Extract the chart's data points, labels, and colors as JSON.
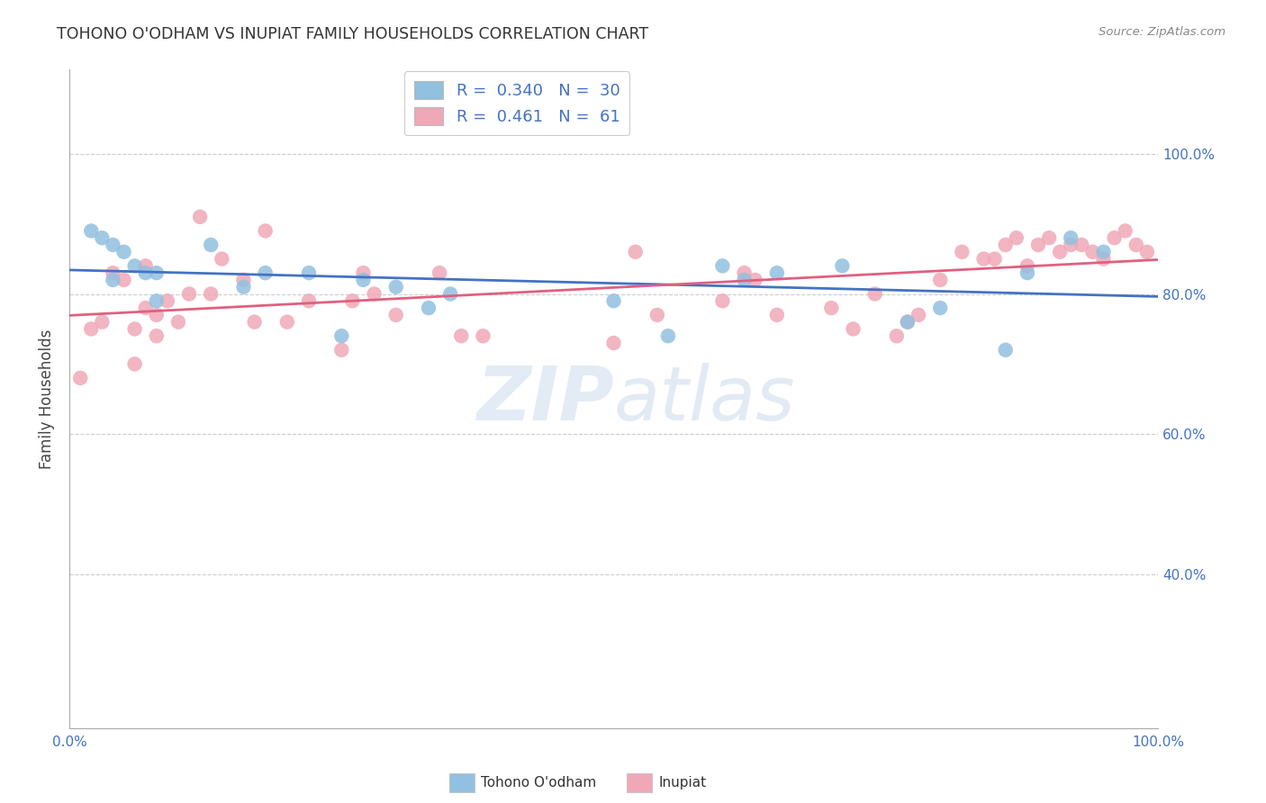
{
  "title": "TOHONO O'ODHAM VS INUPIAT FAMILY HOUSEHOLDS CORRELATION CHART",
  "source": "Source: ZipAtlas.com",
  "ylabel": "Family Households",
  "legend_label1": "Tohono O'odham",
  "legend_label2": "Inupiat",
  "legend_R1": "R =  0.340",
  "legend_N1": "N =  30",
  "legend_R2": "R =  0.461",
  "legend_N2": "N =  61",
  "color_blue": "#92C0E0",
  "color_pink": "#F0A8B8",
  "line_blue": "#4472C4",
  "line_pink": "#E06080",
  "color_R_N": "#4472C4",
  "ytick_labels": [
    "40.0%",
    "60.0%",
    "80.0%",
    "100.0%"
  ],
  "ytick_values": [
    0.4,
    0.6,
    0.8,
    1.0
  ],
  "xlim": [
    0.0,
    1.0
  ],
  "ylim": [
    0.18,
    1.12
  ],
  "grid_color": "#CCCCCC",
  "background_color": "#FFFFFF",
  "blue_x": [
    0.02,
    0.03,
    0.04,
    0.05,
    0.06,
    0.07,
    0.08,
    0.13,
    0.18,
    0.22,
    0.27,
    0.3,
    0.35,
    0.5,
    0.6,
    0.65,
    0.71,
    0.77,
    0.8,
    0.88,
    0.92,
    0.95,
    0.04,
    0.08,
    0.16,
    0.25,
    0.33,
    0.55,
    0.62,
    0.86
  ],
  "blue_y": [
    0.89,
    0.88,
    0.87,
    0.86,
    0.84,
    0.83,
    0.83,
    0.87,
    0.83,
    0.83,
    0.82,
    0.81,
    0.8,
    0.79,
    0.84,
    0.83,
    0.84,
    0.76,
    0.78,
    0.83,
    0.88,
    0.86,
    0.82,
    0.79,
    0.81,
    0.74,
    0.78,
    0.74,
    0.82,
    0.72
  ],
  "pink_x": [
    0.01,
    0.02,
    0.03,
    0.04,
    0.05,
    0.06,
    0.07,
    0.07,
    0.08,
    0.09,
    0.1,
    0.11,
    0.12,
    0.14,
    0.16,
    0.18,
    0.2,
    0.22,
    0.25,
    0.27,
    0.28,
    0.3,
    0.34,
    0.36,
    0.5,
    0.52,
    0.54,
    0.6,
    0.62,
    0.65,
    0.7,
    0.72,
    0.74,
    0.77,
    0.78,
    0.8,
    0.82,
    0.84,
    0.85,
    0.86,
    0.87,
    0.88,
    0.89,
    0.9,
    0.91,
    0.92,
    0.93,
    0.94,
    0.95,
    0.96,
    0.97,
    0.98,
    0.99,
    0.06,
    0.08,
    0.13,
    0.17,
    0.26,
    0.38,
    0.63,
    0.76
  ],
  "pink_y": [
    0.68,
    0.75,
    0.76,
    0.83,
    0.82,
    0.75,
    0.78,
    0.84,
    0.77,
    0.79,
    0.76,
    0.8,
    0.91,
    0.85,
    0.82,
    0.89,
    0.76,
    0.79,
    0.72,
    0.83,
    0.8,
    0.77,
    0.83,
    0.74,
    0.73,
    0.86,
    0.77,
    0.79,
    0.83,
    0.77,
    0.78,
    0.75,
    0.8,
    0.76,
    0.77,
    0.82,
    0.86,
    0.85,
    0.85,
    0.87,
    0.88,
    0.84,
    0.87,
    0.88,
    0.86,
    0.87,
    0.87,
    0.86,
    0.85,
    0.88,
    0.89,
    0.87,
    0.86,
    0.7,
    0.74,
    0.8,
    0.76,
    0.79,
    0.74,
    0.82,
    0.74
  ]
}
